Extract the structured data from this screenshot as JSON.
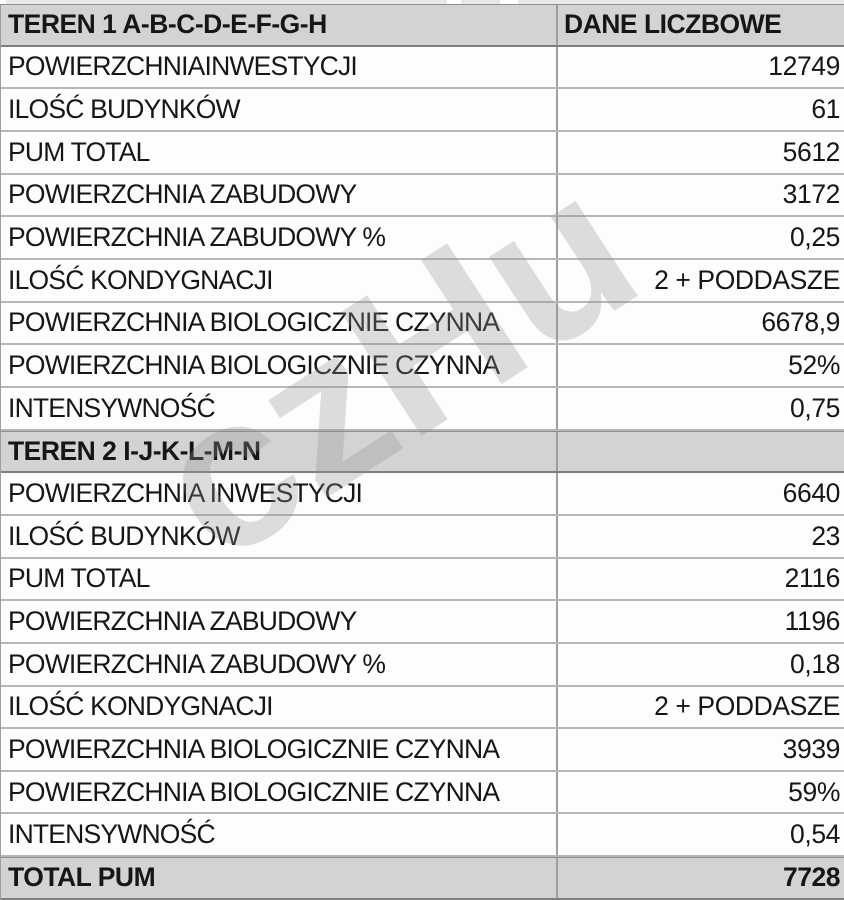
{
  "colors": {
    "band_gray": "#d3d3d3",
    "row_white": "#fdfdfd",
    "border_light": "#b6b6b6",
    "border_dark": "#7f7f7f",
    "divider": "#9e9e9e",
    "text": "#161616",
    "watermark_gray": "rgba(145,145,145,0.30)"
  },
  "watermark": {
    "text": "czHu"
  },
  "table": {
    "column_headers": [
      "TEREN 1 A-B-C-D-E-F-G-H",
      "DANE LICZBOWE"
    ],
    "rows": [
      {
        "type": "header",
        "label": "TEREN 1 A-B-C-D-E-F-G-H",
        "value": "DANE LICZBOWE"
      },
      {
        "type": "data",
        "label": "POWIERZCHNIAINWESTYCJI",
        "value": "12749"
      },
      {
        "type": "data",
        "label": "ILOŚĆ BUDYNKÓW",
        "value": "61"
      },
      {
        "type": "data",
        "label": "PUM TOTAL",
        "value": "5612"
      },
      {
        "type": "data",
        "label": "POWIERZCHNIA ZABUDOWY",
        "value": "3172"
      },
      {
        "type": "data",
        "label": "POWIERZCHNIA ZABUDOWY %",
        "value": "0,25"
      },
      {
        "type": "data",
        "label": "ILOŚĆ KONDYGNACJI",
        "value": "2 + PODDASZE"
      },
      {
        "type": "data",
        "label": "POWIERZCHNIA BIOLOGICZNIE CZYNNA",
        "value": "6678,9"
      },
      {
        "type": "data",
        "label": "POWIERZCHNIA BIOLOGICZNIE CZYNNA",
        "value": "52%"
      },
      {
        "type": "data",
        "label": "INTENSYWNOŚĆ",
        "value": "0,75"
      },
      {
        "type": "section",
        "label": "TEREN 2 I-J-K-L-M-N",
        "value": ""
      },
      {
        "type": "data",
        "label": "POWIERZCHNIA INWESTYCJI",
        "value": "6640"
      },
      {
        "type": "data",
        "label": "ILOŚĆ BUDYNKÓW",
        "value": "23"
      },
      {
        "type": "data",
        "label": "PUM TOTAL",
        "value": "2116"
      },
      {
        "type": "data",
        "label": "POWIERZCHNIA ZABUDOWY",
        "value": "1196"
      },
      {
        "type": "data",
        "label": "POWIERZCHNIA ZABUDOWY %",
        "value": "0,18"
      },
      {
        "type": "data",
        "label": "ILOŚĆ KONDYGNACJI",
        "value": "2 + PODDASZE"
      },
      {
        "type": "data",
        "label": "POWIERZCHNIA BIOLOGICZNIE CZYNNA",
        "value": "3939"
      },
      {
        "type": "data",
        "label": "POWIERZCHNIA BIOLOGICZNIE CZYNNA",
        "value": "59%"
      },
      {
        "type": "data",
        "label": "INTENSYWNOŚĆ",
        "value": "0,54"
      },
      {
        "type": "total",
        "label": "TOTAL PUM",
        "value": "7728"
      }
    ]
  }
}
